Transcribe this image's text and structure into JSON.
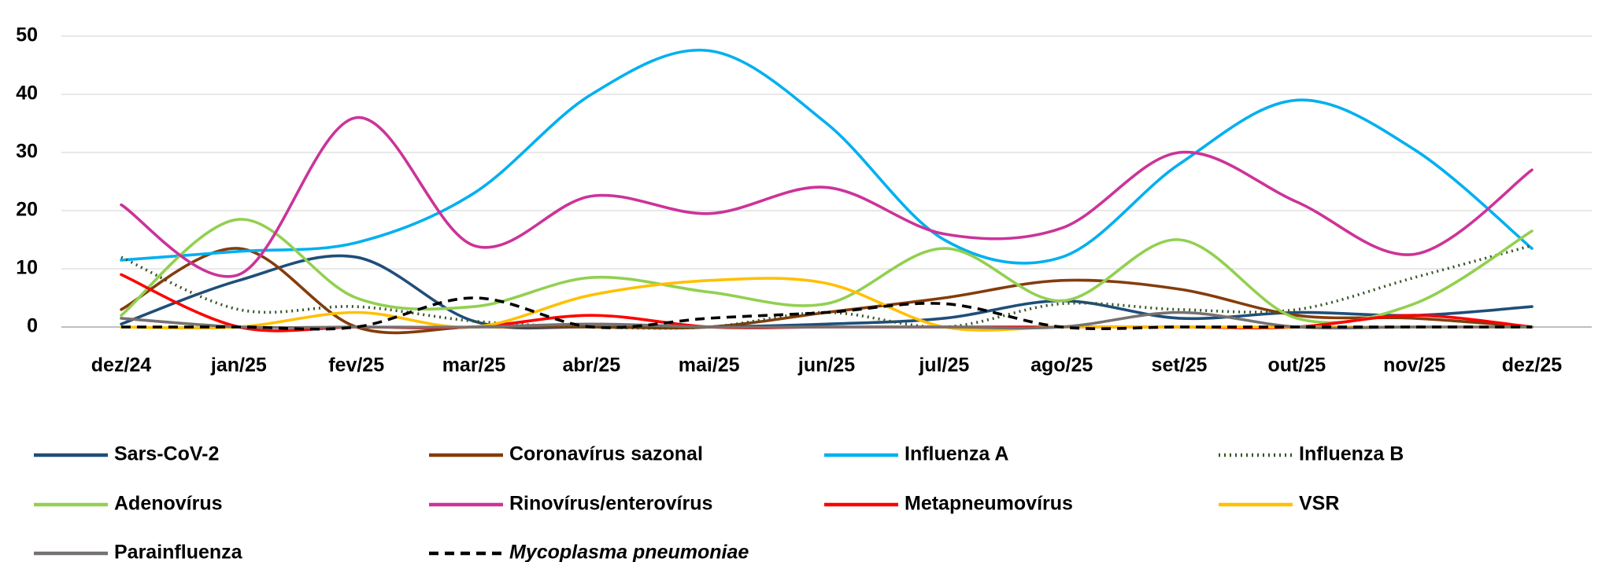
{
  "chart_data": {
    "type": "line",
    "categories": [
      "dez/24",
      "jan/25",
      "fev/25",
      "mar/25",
      "abr/25",
      "mai/25",
      "jun/25",
      "jul/25",
      "ago/25",
      "set/25",
      "out/25",
      "nov/25",
      "dez/25"
    ],
    "ylim": [
      0,
      50
    ],
    "yticks": [
      0,
      10,
      20,
      30,
      40,
      50
    ],
    "grid": true,
    "series": [
      {
        "name": "Sars-CoV-2",
        "color": "#1f4e79",
        "values": [
          0.5,
          8,
          12,
          1,
          0,
          0,
          0.5,
          1.5,
          4.5,
          1.5,
          2.5,
          2,
          3.5
        ]
      },
      {
        "name": "Coronavírus sazonal",
        "color": "#843c0c",
        "values": [
          3,
          13.5,
          0,
          0,
          0,
          0,
          2.5,
          5,
          8,
          6.5,
          2,
          1.5,
          0
        ]
      },
      {
        "name": "Influenza A",
        "color": "#00b0f0",
        "values": [
          11.5,
          13,
          14.5,
          23,
          40,
          47.5,
          35,
          15,
          12,
          28,
          39,
          30.5,
          13.5
        ]
      },
      {
        "name": "Influenza B",
        "color": "#375623",
        "line_style": "dotted",
        "values": [
          12,
          3,
          3.5,
          1,
          0,
          0,
          2.5,
          0,
          4,
          3,
          3,
          8.5,
          14
        ]
      },
      {
        "name": "Adenovírus",
        "color": "#92d050",
        "values": [
          2,
          18.5,
          5,
          3.5,
          8.5,
          6,
          4,
          13.5,
          4.5,
          15,
          1.5,
          4,
          16.5
        ]
      },
      {
        "name": "Rinovírus/enterovírus",
        "color": "#cc3399",
        "values": [
          21,
          9,
          36,
          14,
          22.5,
          19.5,
          24,
          16,
          17,
          30,
          21.5,
          12.5,
          27
        ]
      },
      {
        "name": "Metapneumovírus",
        "color": "#ff0000",
        "values": [
          9,
          0,
          0,
          0,
          2,
          0,
          0,
          0,
          0,
          0,
          0,
          2,
          0
        ]
      },
      {
        "name": "VSR",
        "color": "#ffc000",
        "values": [
          0,
          0,
          2.5,
          0,
          5.5,
          8,
          7.5,
          0,
          0,
          0,
          0,
          0,
          0
        ]
      },
      {
        "name": "Parainfluenza",
        "color": "#767171",
        "values": [
          1.5,
          0,
          0,
          0,
          0.5,
          0,
          0,
          0,
          0,
          2.5,
          0,
          0,
          0
        ]
      },
      {
        "name": "Mycoplasma pneumoniae",
        "color": "#000000",
        "line_style": "dashed",
        "values": [
          0,
          0,
          0,
          5,
          0,
          1.5,
          2.5,
          4,
          0,
          0,
          0,
          0,
          0
        ]
      }
    ]
  }
}
